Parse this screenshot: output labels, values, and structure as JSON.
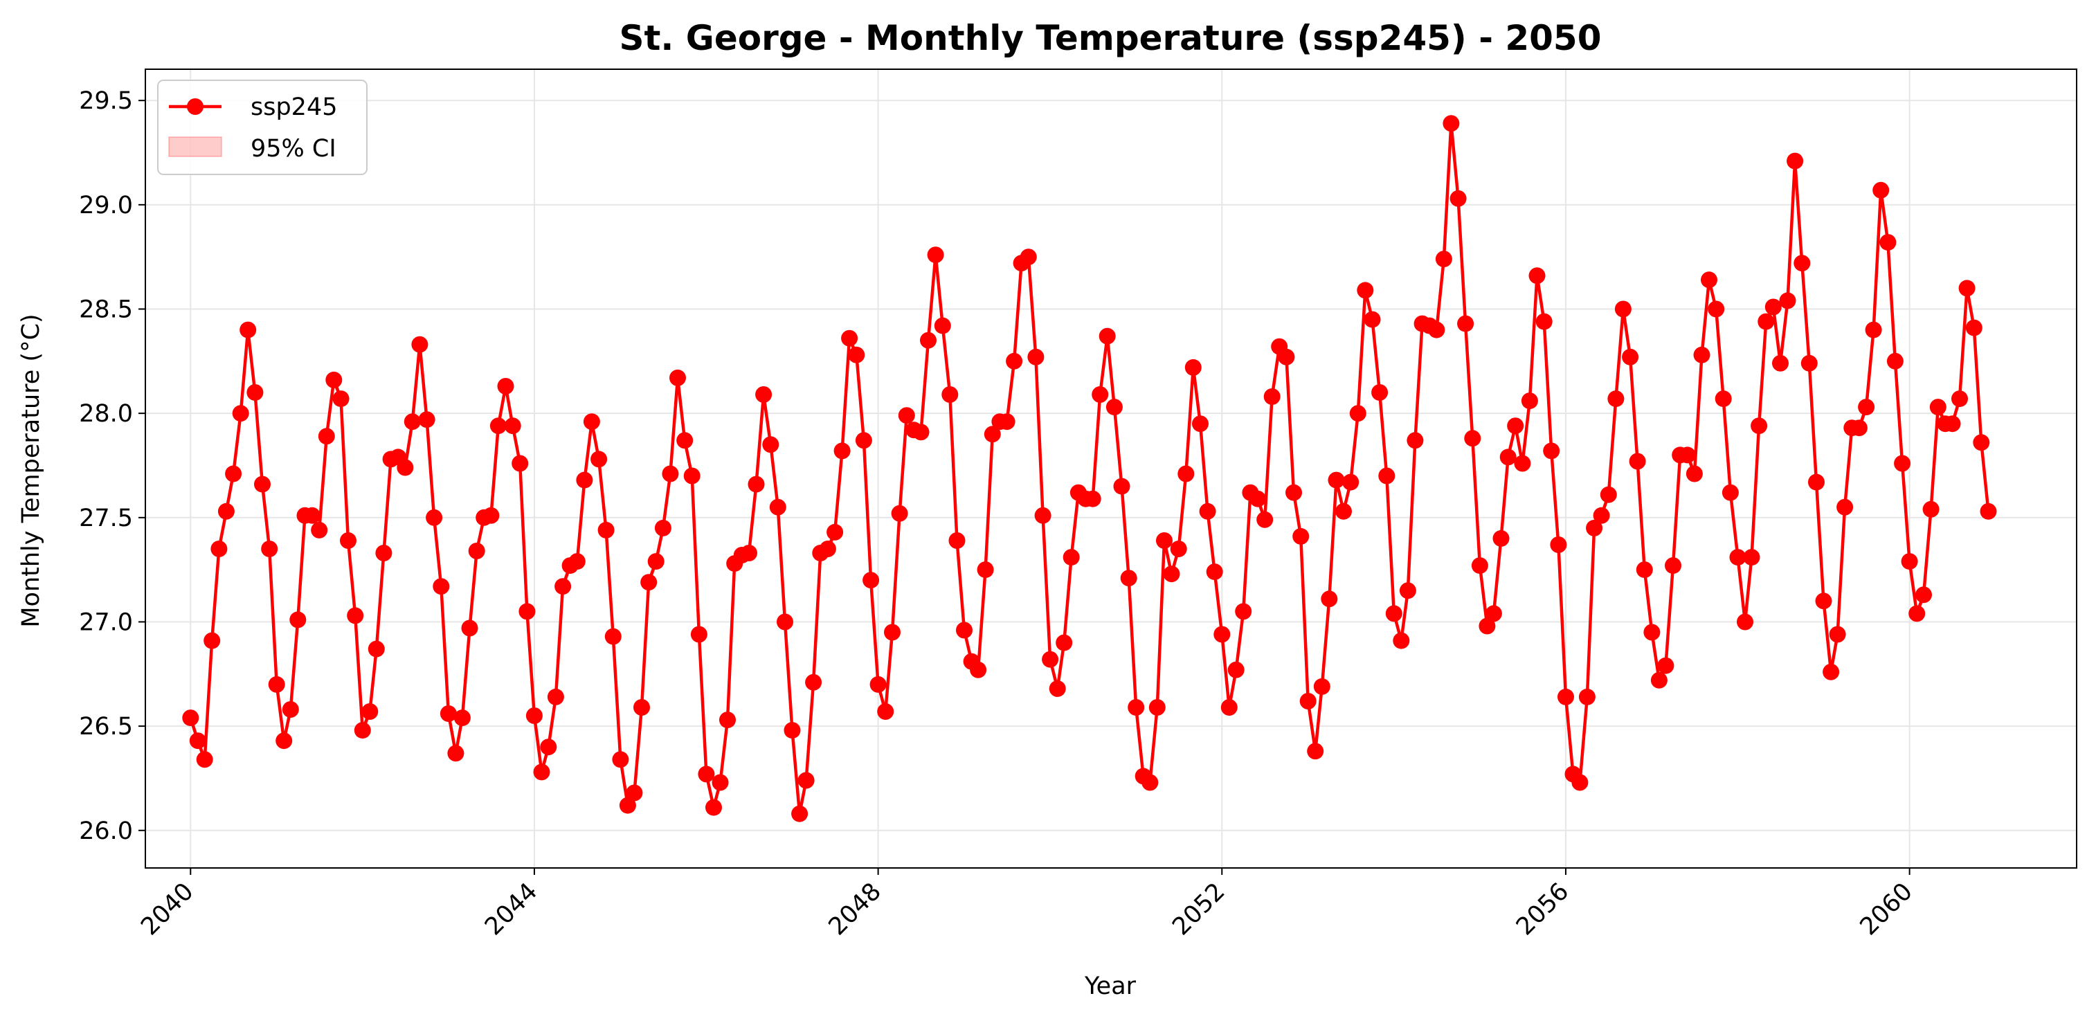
{
  "chart_data": {
    "type": "line",
    "title": "St. George - Monthly Temperature (ssp245) - 2050",
    "xlabel": "Year",
    "ylabel": "Monthly Temperature (°C)",
    "xlim": [
      "2039-06-23",
      "2061-12-11"
    ],
    "ylim": [
      25.82,
      29.65
    ],
    "xticks": [
      "2040",
      "2044",
      "2048",
      "2052",
      "2056",
      "2060"
    ],
    "yticks": [
      "26.0",
      "26.5",
      "27.0",
      "27.5",
      "28.0",
      "28.5",
      "29.0",
      "29.5"
    ],
    "grid": true,
    "legend_position": "top-left",
    "legend": [
      "ssp245",
      "95% CI"
    ],
    "x_start": "2040-01",
    "x_end": "2060-12",
    "x_frequency": "monthly",
    "colors": {
      "line": "#ff0000",
      "ci_band": "#ffc8c8"
    },
    "series": [
      {
        "name": "ssp245",
        "values": [
          26.54,
          26.43,
          26.34,
          26.91,
          27.35,
          27.53,
          27.71,
          28.0,
          28.4,
          28.1,
          27.66,
          27.35,
          26.7,
          26.43,
          26.58,
          27.01,
          27.51,
          27.51,
          27.44,
          27.89,
          28.16,
          28.07,
          27.39,
          27.03,
          26.48,
          26.57,
          26.87,
          27.33,
          27.78,
          27.79,
          27.74,
          27.96,
          28.33,
          27.97,
          27.5,
          27.17,
          26.56,
          26.37,
          26.54,
          26.97,
          27.34,
          27.5,
          27.51,
          27.94,
          28.13,
          27.94,
          27.76,
          27.05,
          26.55,
          26.28,
          26.4,
          26.64,
          27.17,
          27.27,
          27.29,
          27.68,
          27.96,
          27.78,
          27.44,
          26.93,
          26.34,
          26.12,
          26.18,
          26.59,
          27.19,
          27.29,
          27.45,
          27.71,
          28.17,
          27.87,
          27.7,
          26.94,
          26.27,
          26.11,
          26.23,
          26.53,
          27.28,
          27.32,
          27.33,
          27.66,
          28.09,
          27.85,
          27.55,
          27.0,
          26.48,
          26.08,
          26.24,
          26.71,
          27.33,
          27.35,
          27.43,
          27.82,
          28.36,
          28.28,
          27.87,
          27.2,
          26.7,
          26.57,
          26.95,
          27.52,
          27.99,
          27.92,
          27.91,
          28.35,
          28.76,
          28.42,
          28.09,
          27.39,
          26.96,
          26.81,
          26.77,
          27.25,
          27.9,
          27.96,
          27.96,
          28.25,
          28.72,
          28.75,
          28.27,
          27.51,
          26.82,
          26.68,
          26.9,
          27.31,
          27.62,
          27.59,
          27.59,
          28.09,
          28.37,
          28.03,
          27.65,
          27.21,
          26.59,
          26.26,
          26.23,
          26.59,
          27.39,
          27.23,
          27.35,
          27.71,
          28.22,
          27.95,
          27.53,
          27.24,
          26.94,
          26.59,
          26.77,
          27.05,
          27.62,
          27.59,
          27.49,
          28.08,
          28.32,
          28.27,
          27.62,
          27.41,
          26.62,
          26.38,
          26.69,
          27.11,
          27.68,
          27.53,
          27.67,
          28.0,
          28.59,
          28.45,
          28.1,
          27.7,
          27.04,
          26.91,
          27.15,
          27.87,
          28.43,
          28.42,
          28.4,
          28.74,
          29.39,
          29.03,
          28.43,
          27.88,
          27.27,
          26.98,
          27.04,
          27.4,
          27.79,
          27.94,
          27.76,
          28.06,
          28.66,
          28.44,
          27.82,
          27.37,
          26.64,
          26.27,
          26.23,
          26.64,
          27.45,
          27.51,
          27.61,
          28.07,
          28.5,
          28.27,
          27.77,
          27.25,
          26.95,
          26.72,
          26.79,
          27.27,
          27.8,
          27.8,
          27.71,
          28.28,
          28.64,
          28.5,
          28.07,
          27.62,
          27.31,
          27.0,
          27.31,
          27.94,
          28.44,
          28.51,
          28.24,
          28.54,
          29.21,
          28.72,
          28.24,
          27.67,
          27.1,
          26.76,
          26.94,
          27.55,
          27.93,
          27.93,
          28.03,
          28.4,
          29.07,
          28.82,
          28.25,
          27.76,
          27.29,
          27.04,
          27.13,
          27.54,
          28.03,
          27.95,
          27.95,
          28.07,
          28.6,
          28.41,
          27.86,
          27.53
        ]
      }
    ]
  }
}
